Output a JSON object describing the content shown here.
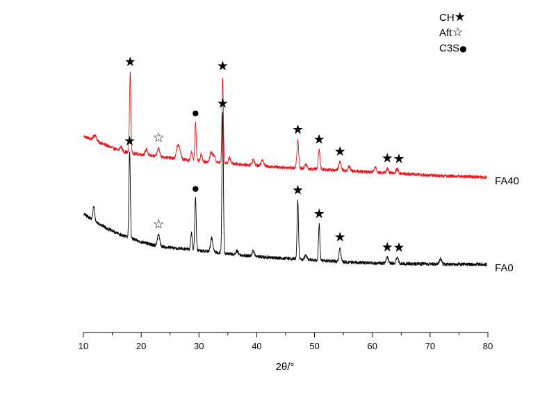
{
  "chart_data": {
    "type": "line",
    "xlabel": "2θ/°",
    "ylabel": "",
    "xlim": [
      10,
      80
    ],
    "x_ticks": [
      10,
      20,
      30,
      40,
      50,
      60,
      70,
      80
    ],
    "y_axis_visible": false,
    "grid": false,
    "legend": {
      "placement": "top-right",
      "entries": [
        {
          "label": "CH",
          "symbol": "★",
          "phase": "CH"
        },
        {
          "label": "Aft",
          "symbol": "☆",
          "phase": "Aft"
        },
        {
          "label": "C3S",
          "symbol": "●",
          "phase": "C3S"
        }
      ]
    },
    "series": [
      {
        "name": "FA40",
        "color": "#e8141b",
        "baseline": [
          [
            10.1,
            0.52
          ],
          [
            12,
            0.49
          ],
          [
            14,
            0.455
          ],
          [
            16,
            0.42
          ],
          [
            18,
            0.4
          ],
          [
            20,
            0.39
          ],
          [
            22,
            0.38
          ],
          [
            24,
            0.37
          ],
          [
            26,
            0.36
          ],
          [
            28,
            0.35
          ],
          [
            30,
            0.342
          ],
          [
            32,
            0.335
          ],
          [
            34,
            0.33
          ],
          [
            36,
            0.322
          ],
          [
            40,
            0.31
          ],
          [
            44,
            0.298
          ],
          [
            48,
            0.29
          ],
          [
            52,
            0.28
          ],
          [
            56,
            0.272
          ],
          [
            60,
            0.262
          ],
          [
            65,
            0.252
          ],
          [
            70,
            0.24
          ],
          [
            75,
            0.232
          ],
          [
            79.8,
            0.226
          ]
        ],
        "peaks": [
          {
            "x": 12.0,
            "h": 0.04,
            "w": 0.25
          },
          {
            "x": 16.5,
            "h": 0.03,
            "w": 0.2
          },
          {
            "x": 18.1,
            "h": 0.58,
            "w": 0.12
          },
          {
            "x": 20.9,
            "h": 0.04,
            "w": 0.2
          },
          {
            "x": 23.0,
            "h": 0.06,
            "w": 0.2
          },
          {
            "x": 26.3,
            "h": 0.09,
            "w": 0.2
          },
          {
            "x": 26.7,
            "h": 0.06,
            "w": 0.2
          },
          {
            "x": 28.7,
            "h": 0.06,
            "w": 0.15
          },
          {
            "x": 29.4,
            "h": 0.28,
            "w": 0.12
          },
          {
            "x": 30.4,
            "h": 0.05,
            "w": 0.15
          },
          {
            "x": 32.1,
            "h": 0.07,
            "w": 0.2
          },
          {
            "x": 32.6,
            "h": 0.05,
            "w": 0.2
          },
          {
            "x": 34.1,
            "h": 0.62,
            "w": 0.12
          },
          {
            "x": 35.3,
            "h": 0.04,
            "w": 0.2
          },
          {
            "x": 39.4,
            "h": 0.04,
            "w": 0.2
          },
          {
            "x": 41.0,
            "h": 0.05,
            "w": 0.2
          },
          {
            "x": 47.1,
            "h": 0.2,
            "w": 0.15
          },
          {
            "x": 48.5,
            "h": 0.03,
            "w": 0.2
          },
          {
            "x": 50.8,
            "h": 0.14,
            "w": 0.15
          },
          {
            "x": 54.4,
            "h": 0.06,
            "w": 0.2
          },
          {
            "x": 56.0,
            "h": 0.03,
            "w": 0.2
          },
          {
            "x": 60.5,
            "h": 0.04,
            "w": 0.2
          },
          {
            "x": 62.6,
            "h": 0.03,
            "w": 0.2
          },
          {
            "x": 64.3,
            "h": 0.03,
            "w": 0.2
          }
        ],
        "noise_amp": 0.012,
        "label": "FA40"
      },
      {
        "name": "FA0",
        "color": "#000000",
        "baseline": [
          [
            10.1,
            -0.04
          ],
          [
            12,
            -0.09
          ],
          [
            14,
            -0.14
          ],
          [
            16,
            -0.18
          ],
          [
            18,
            -0.21
          ],
          [
            20,
            -0.24
          ],
          [
            22,
            -0.26
          ],
          [
            24,
            -0.275
          ],
          [
            26,
            -0.285
          ],
          [
            28,
            -0.29
          ],
          [
            30,
            -0.3
          ],
          [
            32,
            -0.31
          ],
          [
            34,
            -0.32
          ],
          [
            36,
            -0.33
          ],
          [
            40,
            -0.345
          ],
          [
            44,
            -0.355
          ],
          [
            48,
            -0.365
          ],
          [
            52,
            -0.375
          ],
          [
            56,
            -0.385
          ],
          [
            60,
            -0.39
          ],
          [
            65,
            -0.395
          ],
          [
            70,
            -0.398
          ],
          [
            75,
            -0.4
          ],
          [
            79.8,
            -0.4
          ]
        ],
        "peaks": [
          {
            "x": 11.8,
            "h": 0.1,
            "w": 0.15
          },
          {
            "x": 18.0,
            "h": 0.62,
            "w": 0.12
          },
          {
            "x": 23.0,
            "h": 0.08,
            "w": 0.2
          },
          {
            "x": 28.7,
            "h": 0.12,
            "w": 0.12
          },
          {
            "x": 29.4,
            "h": 0.38,
            "w": 0.12
          },
          {
            "x": 32.2,
            "h": 0.1,
            "w": 0.2
          },
          {
            "x": 34.1,
            "h": 1.0,
            "w": 0.12
          },
          {
            "x": 36.6,
            "h": 0.03,
            "w": 0.2
          },
          {
            "x": 39.4,
            "h": 0.04,
            "w": 0.2
          },
          {
            "x": 47.1,
            "h": 0.42,
            "w": 0.12
          },
          {
            "x": 48.5,
            "h": 0.03,
            "w": 0.2
          },
          {
            "x": 50.8,
            "h": 0.26,
            "w": 0.12
          },
          {
            "x": 54.4,
            "h": 0.1,
            "w": 0.15
          },
          {
            "x": 62.6,
            "h": 0.04,
            "w": 0.2
          },
          {
            "x": 64.3,
            "h": 0.04,
            "w": 0.2
          },
          {
            "x": 71.8,
            "h": 0.04,
            "w": 0.2
          }
        ],
        "noise_amp": 0.012,
        "label": "FA0"
      }
    ],
    "peak_markers": [
      {
        "series": "FA40",
        "x": 18.1,
        "symbol": "★"
      },
      {
        "series": "FA40",
        "x": 23.0,
        "symbol": "☆"
      },
      {
        "series": "FA40",
        "x": 29.4,
        "symbol": "●"
      },
      {
        "series": "FA40",
        "x": 34.1,
        "symbol": "★"
      },
      {
        "series": "FA40",
        "x": 47.1,
        "symbol": "★"
      },
      {
        "series": "FA40",
        "x": 50.8,
        "symbol": "★"
      },
      {
        "series": "FA40",
        "x": 54.4,
        "symbol": "★"
      },
      {
        "series": "FA40",
        "x": 62.6,
        "symbol": "★"
      },
      {
        "series": "FA40",
        "x": 64.6,
        "symbol": "★"
      },
      {
        "series": "FA0",
        "x": 18.0,
        "symbol": "★"
      },
      {
        "series": "FA0",
        "x": 23.0,
        "symbol": "☆"
      },
      {
        "series": "FA0",
        "x": 29.4,
        "symbol": "●"
      },
      {
        "series": "FA0",
        "x": 34.1,
        "symbol": "★"
      },
      {
        "series": "FA0",
        "x": 47.1,
        "symbol": "★"
      },
      {
        "series": "FA0",
        "x": 50.8,
        "symbol": "★"
      },
      {
        "series": "FA0",
        "x": 54.4,
        "symbol": "★"
      },
      {
        "series": "FA0",
        "x": 62.6,
        "symbol": "★"
      },
      {
        "series": "FA0",
        "x": 64.6,
        "symbol": "★"
      }
    ]
  }
}
